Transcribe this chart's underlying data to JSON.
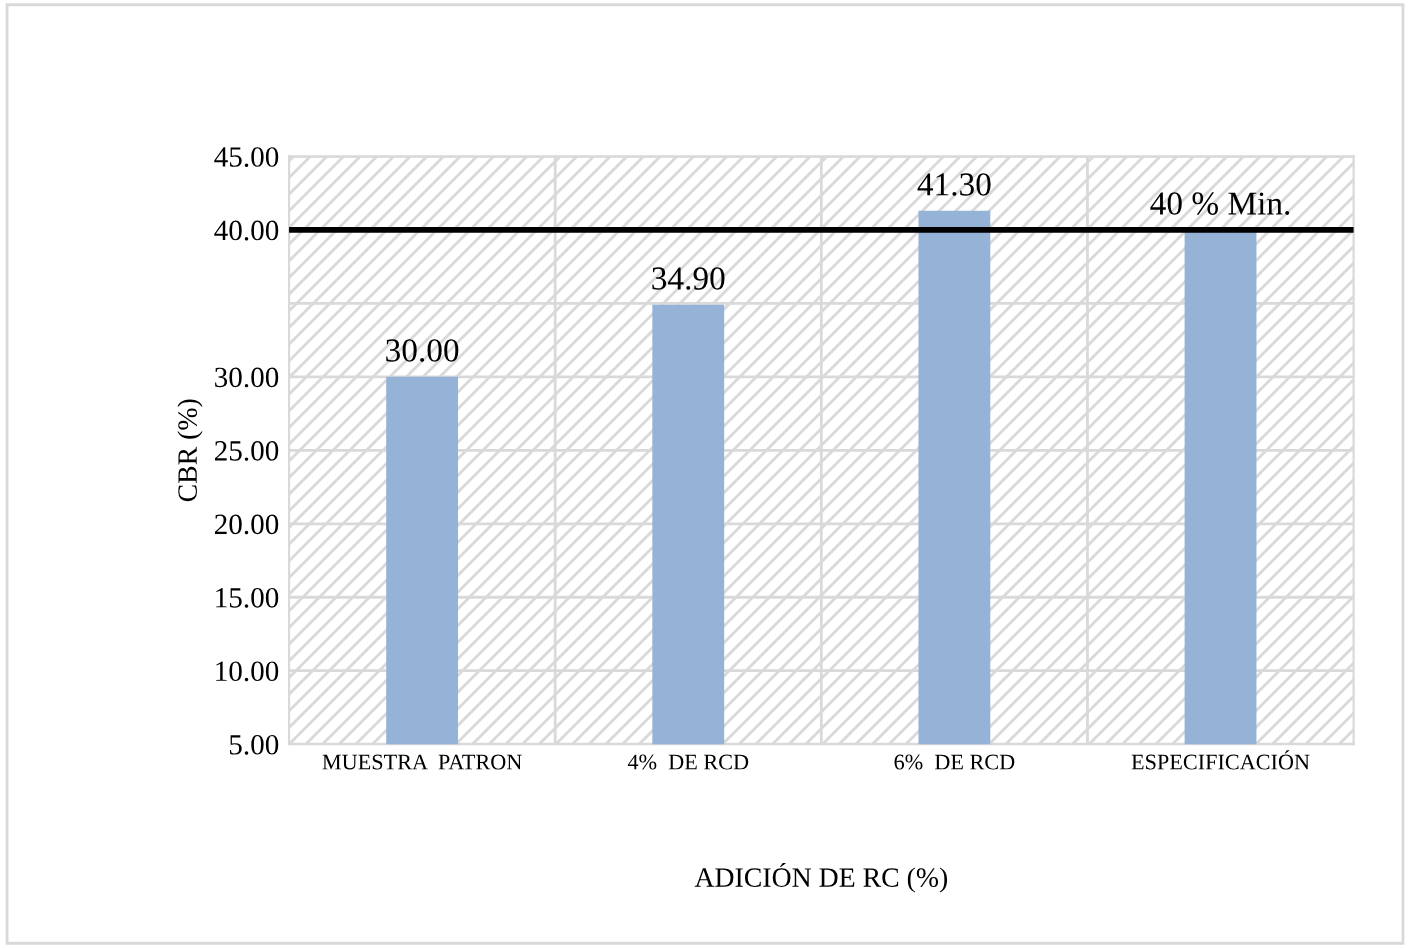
{
  "chart_data": {
    "type": "bar",
    "xlabel": "ADICIÓN DE RC (%)",
    "ylabel": "CBR (%)",
    "categories": [
      "MUESTRA  PATRON",
      "4%  DE RCD",
      "6%  DE RCD",
      "ESPECIFICACIÓN"
    ],
    "values": [
      30.0,
      34.9,
      41.3,
      40.0
    ],
    "color": "#95b3d7",
    "value_labels": [
      "30.00",
      "34.90",
      "41.30",
      "40 % Min."
    ],
    "ylim": [
      5,
      45
    ],
    "yticks": [
      {
        "value": 5,
        "label": "5.00"
      },
      {
        "value": 10,
        "label": "10.00"
      },
      {
        "value": 15,
        "label": "15.00"
      },
      {
        "value": 20,
        "label": "20.00"
      },
      {
        "value": 25,
        "label": "25.00"
      },
      {
        "value": 30,
        "label": "30.00"
      },
      {
        "value": 35,
        "label": null
      },
      {
        "value": 40,
        "label": "40.00"
      },
      {
        "value": 45,
        "label": "45.00"
      }
    ],
    "ref_lines": [
      {
        "axis": "y",
        "value": 40,
        "color": "#000000"
      }
    ],
    "grid": "y"
  }
}
